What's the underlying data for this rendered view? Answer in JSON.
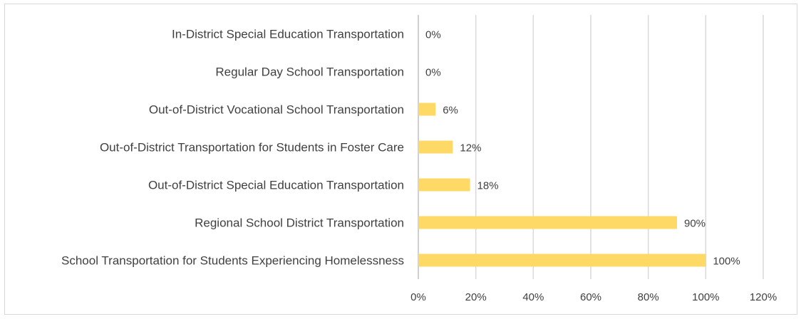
{
  "chart_data": {
    "type": "bar",
    "orientation": "horizontal",
    "title": "",
    "xlabel": "",
    "ylabel": "",
    "categories": [
      "In-District Special Education Transportation",
      "Regular Day School Transportation",
      "Out-of-District Vocational School Transportation",
      "Out-of-District Transportation for Students in Foster Care",
      "Out-of-District Special Education Transportation",
      "Regional School District Transportation",
      "School Transportation for Students Experiencing Homelessness"
    ],
    "values": [
      0,
      0,
      6,
      12,
      18,
      90,
      100
    ],
    "data_labels": [
      "0%",
      "0%",
      "6%",
      "12%",
      "18%",
      "90%",
      "100%"
    ],
    "xlim": [
      0,
      120
    ],
    "xticks": [
      0,
      20,
      40,
      60,
      80,
      100,
      120
    ],
    "xtick_labels": [
      "0%",
      "20%",
      "40%",
      "60%",
      "80%",
      "100%",
      "120%"
    ],
    "grid": true,
    "legend": "none",
    "bar_color": "#FFD966",
    "grid_color": "#D9D9D9"
  }
}
